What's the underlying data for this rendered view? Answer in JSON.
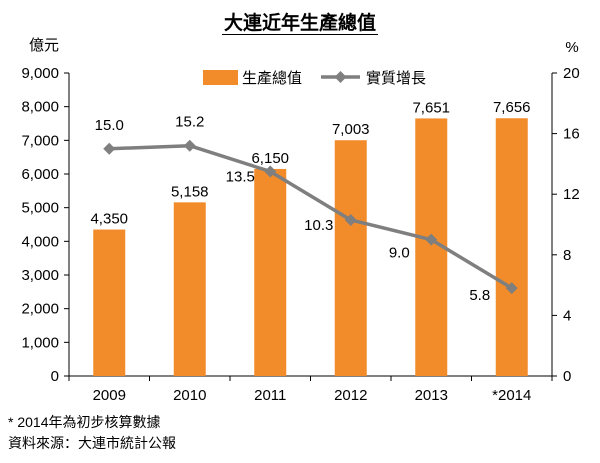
{
  "chart_data": {
    "type": "bar",
    "title": "大連近年生產總值",
    "categories": [
      "2009",
      "2010",
      "2011",
      "2012",
      "2013",
      "*2014"
    ],
    "ylabel": "億元",
    "ylim": [
      0,
      9000
    ],
    "yticks": [
      "0",
      "1,000",
      "2,000",
      "3,000",
      "4,000",
      "5,000",
      "6,000",
      "7,000",
      "8,000",
      "9,000"
    ],
    "y2label": "%",
    "y2lim": [
      0,
      20
    ],
    "y2ticks": [
      "0",
      "4",
      "8",
      "12",
      "16",
      "20"
    ],
    "grid": false,
    "legend": "top-center",
    "series": [
      {
        "name": "生產總值",
        "type": "bar",
        "axis": "left",
        "color": "#F28C2B",
        "values": [
          4350,
          5158,
          6150,
          7003,
          7651,
          7656
        ],
        "labels": [
          "4,350",
          "5,158",
          "6,150",
          "7,003",
          "7,651",
          "7,656"
        ]
      },
      {
        "name": "實質增長",
        "type": "line",
        "axis": "right",
        "color": "#7F7F7F",
        "values": [
          15.0,
          15.2,
          13.5,
          10.3,
          9.0,
          5.8
        ],
        "labels": [
          "15.0",
          "15.2",
          "13.5",
          "10.3",
          "9.0",
          "5.8"
        ]
      }
    ]
  },
  "footnotes": [
    "* 2014年為初步核算數據",
    "資料來源：大連市統計公報"
  ]
}
